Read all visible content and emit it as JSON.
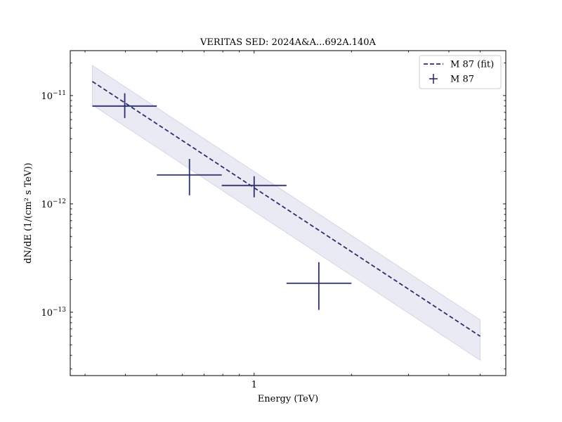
{
  "chart_data": {
    "type": "scatter",
    "title": "VERITAS SED: 2024A&A...692A.140A",
    "xlabel": "Energy (TeV)",
    "ylabel": "dN/dE (1/(cm² s TeV))",
    "xscale": "log",
    "yscale": "log",
    "xlim": [
      0.27,
      6.0
    ],
    "ylim": [
      2.6e-14,
      2.6e-11
    ],
    "x_ticks": [
      {
        "value": 1,
        "label": "1"
      }
    ],
    "y_ticks": [
      {
        "value": 1e-13,
        "base": "10",
        "exp": "−13"
      },
      {
        "value": 1e-12,
        "base": "10",
        "exp": "−12"
      },
      {
        "value": 1e-11,
        "base": "10",
        "exp": "−11"
      }
    ],
    "grid": false,
    "legend_position": "top-right",
    "color": "#2b2f6e",
    "band_color": "#9aa0c8",
    "series": [
      {
        "name": "M 87 (fit)",
        "kind": "line",
        "style": "dashed",
        "points": [
          [
            0.316,
            1.35e-11
          ],
          [
            5.0,
            6e-14
          ]
        ],
        "band_upper": [
          [
            0.316,
            1.9e-11
          ],
          [
            5.0,
            8.5e-14
          ]
        ],
        "band_lower": [
          [
            0.316,
            8.2e-12
          ],
          [
            5.0,
            3.6e-14
          ]
        ]
      },
      {
        "name": "M 87",
        "kind": "errorbar",
        "points": [
          {
            "x": 0.398,
            "y": 8e-12,
            "x_lo": 0.316,
            "x_hi": 0.5,
            "y_lo": 6.2e-12,
            "y_hi": 1.05e-11
          },
          {
            "x": 0.631,
            "y": 1.85e-12,
            "x_lo": 0.5,
            "x_hi": 0.794,
            "y_lo": 1.2e-12,
            "y_hi": 2.6e-12
          },
          {
            "x": 1.0,
            "y": 1.48e-12,
            "x_lo": 0.794,
            "x_hi": 1.259,
            "y_lo": 1.15e-12,
            "y_hi": 1.8e-12
          },
          {
            "x": 1.585,
            "y": 1.85e-13,
            "x_lo": 1.259,
            "x_hi": 2.0,
            "y_lo": 1.05e-13,
            "y_hi": 2.9e-13
          }
        ]
      }
    ]
  }
}
